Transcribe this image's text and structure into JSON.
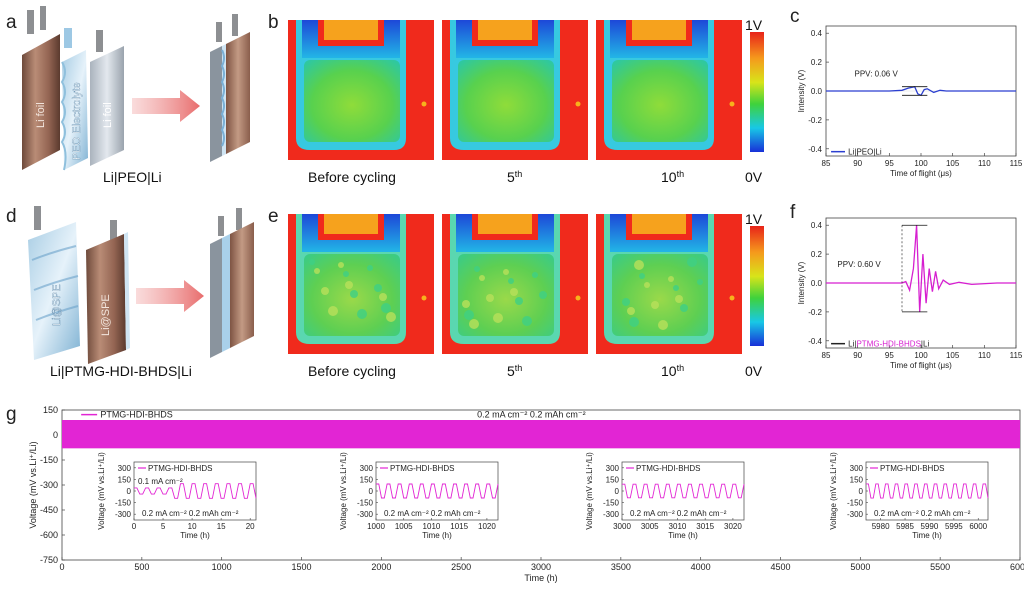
{
  "figure": {
    "panel_labels": [
      "a",
      "b",
      "c",
      "d",
      "e",
      "f",
      "g"
    ],
    "cell_a": {
      "foil_left": "Li foil",
      "electrolyte": "PEO Electrolyte",
      "foil_right": "Li foil",
      "caption": "Li|PEO|Li"
    },
    "cell_d": {
      "left": "Li@SPE",
      "right": "Li@SPE",
      "caption": "Li|PTMG-HDI-BHDS|Li"
    },
    "heatmap_b": {
      "labels": [
        "Before cycling",
        "5",
        "10"
      ],
      "sup": [
        "",
        "th",
        "th"
      ],
      "colorbar_top": "1V",
      "colorbar_bottom": "0V"
    },
    "heatmap_e": {
      "labels": [
        "Before cycling",
        "5",
        "10"
      ],
      "sup": [
        "",
        "th",
        "th"
      ],
      "colorbar_top": "1V",
      "colorbar_bottom": "0V"
    }
  },
  "chart_data": [
    {
      "id": "c",
      "type": "line",
      "xlabel": "Time of flight (μs)",
      "ylabel": "Intensity (V)",
      "xlim": [
        85,
        115
      ],
      "ylim": [
        -0.45,
        0.45
      ],
      "xticks": [
        85,
        90,
        95,
        100,
        105,
        110,
        115
      ],
      "yticks": [
        0.4,
        0.2,
        0.0,
        -0.2,
        -0.4
      ],
      "xtick_labels": [
        "85",
        "90",
        "95",
        "100",
        "105",
        "110",
        "115"
      ],
      "ytick_labels": [
        "0.4",
        "0.2",
        "0.0",
        "-0.2",
        "-0.4"
      ],
      "annotation": "PPV: 0.06 V",
      "legend": "Li|PEO|Li",
      "color": "#2b3fd0",
      "series": {
        "x": [
          85,
          90,
          95,
          97,
          98,
          99,
          99.5,
          100,
          100.5,
          101,
          102,
          103,
          104,
          106,
          110,
          115
        ],
        "y": [
          0,
          0,
          0,
          0.005,
          0.02,
          0.03,
          -0.02,
          -0.03,
          0.01,
          0.015,
          -0.01,
          0.005,
          0,
          0,
          0,
          0
        ]
      }
    },
    {
      "id": "f",
      "type": "line",
      "xlabel": "Time of flight (μs)",
      "ylabel": "Intensity (V)",
      "xlim": [
        85,
        115
      ],
      "ylim": [
        -0.45,
        0.45
      ],
      "xticks": [
        85,
        90,
        95,
        100,
        105,
        110,
        115
      ],
      "yticks": [
        0.4,
        0.2,
        0.0,
        -0.2,
        -0.4
      ],
      "xtick_labels": [
        "85",
        "90",
        "95",
        "100",
        "105",
        "110",
        "115"
      ],
      "ytick_labels": [
        "0.4",
        "0.2",
        "0.0",
        "-0.2",
        "-0.4"
      ],
      "annotation": "PPV: 0.60 V",
      "legend_prefix": "Li|",
      "legend_mid": "PTMG-HDI-BHDS",
      "legend_suffix": "|Li",
      "color": "#d61fd0",
      "series": {
        "x": [
          85,
          95,
          97,
          97.6,
          98.2,
          98.8,
          99.3,
          99.8,
          100.3,
          100.8,
          101.3,
          101.8,
          102.3,
          102.8,
          103.5,
          104.5,
          106,
          108,
          112,
          115
        ],
        "y": [
          0,
          0,
          0,
          0.01,
          -0.05,
          0.1,
          0.4,
          -0.2,
          0.2,
          -0.14,
          0.1,
          -0.06,
          0.08,
          -0.04,
          0.02,
          -0.01,
          0.005,
          -0.01,
          0,
          0
        ]
      }
    },
    {
      "id": "g",
      "type": "line",
      "xlabel": "Time (h)",
      "ylabel": "Voltage (mV vs.Li⁺/Li)",
      "xlim": [
        0,
        6000
      ],
      "ylim": [
        -750,
        150
      ],
      "xticks": [
        0,
        500,
        1000,
        1500,
        2000,
        2500,
        3000,
        3500,
        4000,
        4500,
        5000,
        5500,
        6000
      ],
      "yticks": [
        150,
        0,
        -150,
        -300,
        -450,
        -600,
        -750
      ],
      "xtick_labels": [
        "0",
        "500",
        "1000",
        "1500",
        "2000",
        "2500",
        "3000",
        "3500",
        "4000",
        "4500",
        "5000",
        "5500",
        "6000"
      ],
      "ytick_labels": [
        "150",
        "0",
        "-150",
        "-300",
        "-450",
        "-600",
        "-750"
      ],
      "legend": "PTMG-HDI-BHDS",
      "condition": "0.2 mA cm⁻²  0.2 mAh cm⁻²",
      "band": {
        "upper": 90,
        "lower": -80,
        "x_end": 6000
      },
      "insets": [
        {
          "xlim": [
            0,
            21
          ],
          "xticks": [
            0,
            5,
            10,
            15,
            20
          ],
          "xtick_labels": [
            "0",
            "5",
            "10",
            "15",
            "20"
          ],
          "ylim": [
            -375,
            375
          ],
          "yticks": [
            300,
            150,
            0,
            -150,
            -300
          ],
          "ytick_labels": [
            "300",
            "150",
            "0",
            "-150",
            "-300"
          ],
          "legend": "PTMG-HDI-BHDS",
          "note1": "0.1 mA cm⁻²",
          "note2": "0.2 mA cm⁻²  0.2 mAh cm⁻²",
          "xlabel": "Time (h)",
          "ylabel": "Voltage (mV vs.Li⁺/Li)",
          "first_low_until": 7,
          "amp_low": 40,
          "amp_high": 95
        },
        {
          "xlim": [
            1000,
            1022
          ],
          "xticks": [
            1000,
            1005,
            1010,
            1015,
            1020
          ],
          "xtick_labels": [
            "1000",
            "1005",
            "1010",
            "1015",
            "1020"
          ],
          "ylim": [
            -375,
            375
          ],
          "yticks": [
            300,
            150,
            0,
            -150,
            -300
          ],
          "ytick_labels": [
            "300",
            "150",
            "0",
            "-150",
            "-300"
          ],
          "legend": "PTMG-HDI-BHDS",
          "note1": "",
          "note2": "0.2 mA cm⁻²  0.2 mAh cm⁻²",
          "xlabel": "Time (h)",
          "ylabel": "Voltage (mV vs.Li⁺/Li)",
          "first_low_until": 0,
          "amp_low": 40,
          "amp_high": 90
        },
        {
          "xlim": [
            3000,
            3022
          ],
          "xticks": [
            3000,
            3005,
            3010,
            3015,
            3020
          ],
          "xtick_labels": [
            "3000",
            "3005",
            "3010",
            "3015",
            "3020"
          ],
          "ylim": [
            -375,
            375
          ],
          "yticks": [
            300,
            150,
            0,
            -150,
            -300
          ],
          "ytick_labels": [
            "300",
            "150",
            "0",
            "-150",
            "-300"
          ],
          "legend": "PTMG-HDI-BHDS",
          "note1": "",
          "note2": "0.2 mA cm⁻²  0.2 mAh cm⁻²",
          "xlabel": "Time (h)",
          "ylabel": "Voltage (mV vs.Li⁺/Li)",
          "first_low_until": 0,
          "amp_low": 40,
          "amp_high": 88
        },
        {
          "xlim": [
            5977,
            6002
          ],
          "xticks": [
            5980,
            5985,
            5990,
            5995,
            6000
          ],
          "xtick_labels": [
            "5980",
            "5985",
            "5990",
            "5995",
            "6000"
          ],
          "ylim": [
            -375,
            375
          ],
          "yticks": [
            300,
            150,
            0,
            -150,
            -300
          ],
          "ytick_labels": [
            "300",
            "150",
            "0",
            "-150",
            "-300"
          ],
          "legend": "PTMG-HDI-BHDS",
          "note1": "",
          "note2": "0.2 mA cm⁻²  0.2 mAh cm⁻²",
          "xlabel": "Time (h)",
          "ylabel": "Voltage (mV vs.Li⁺/Li)",
          "first_low_until": 0,
          "amp_low": 40,
          "amp_high": 92
        }
      ]
    }
  ]
}
